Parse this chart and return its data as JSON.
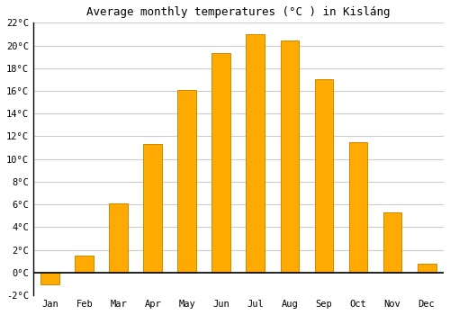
{
  "title": "Average monthly temperatures (°C ) in Kisláng",
  "months": [
    "Jan",
    "Feb",
    "Mar",
    "Apr",
    "May",
    "Jun",
    "Jul",
    "Aug",
    "Sep",
    "Oct",
    "Nov",
    "Dec"
  ],
  "values": [
    -1.0,
    1.5,
    6.1,
    11.3,
    16.1,
    19.3,
    21.0,
    20.4,
    17.0,
    11.5,
    5.3,
    0.8
  ],
  "bar_color": "#FFAA00",
  "bar_edge_color": "#CC8800",
  "ylim": [
    -2,
    22
  ],
  "yticks": [
    -2,
    0,
    2,
    4,
    6,
    8,
    10,
    12,
    14,
    16,
    18,
    20,
    22
  ],
  "background_color": "#ffffff",
  "grid_color": "#cccccc",
  "title_fontsize": 9,
  "tick_fontsize": 7.5,
  "font_family": "monospace",
  "bar_width": 0.55
}
